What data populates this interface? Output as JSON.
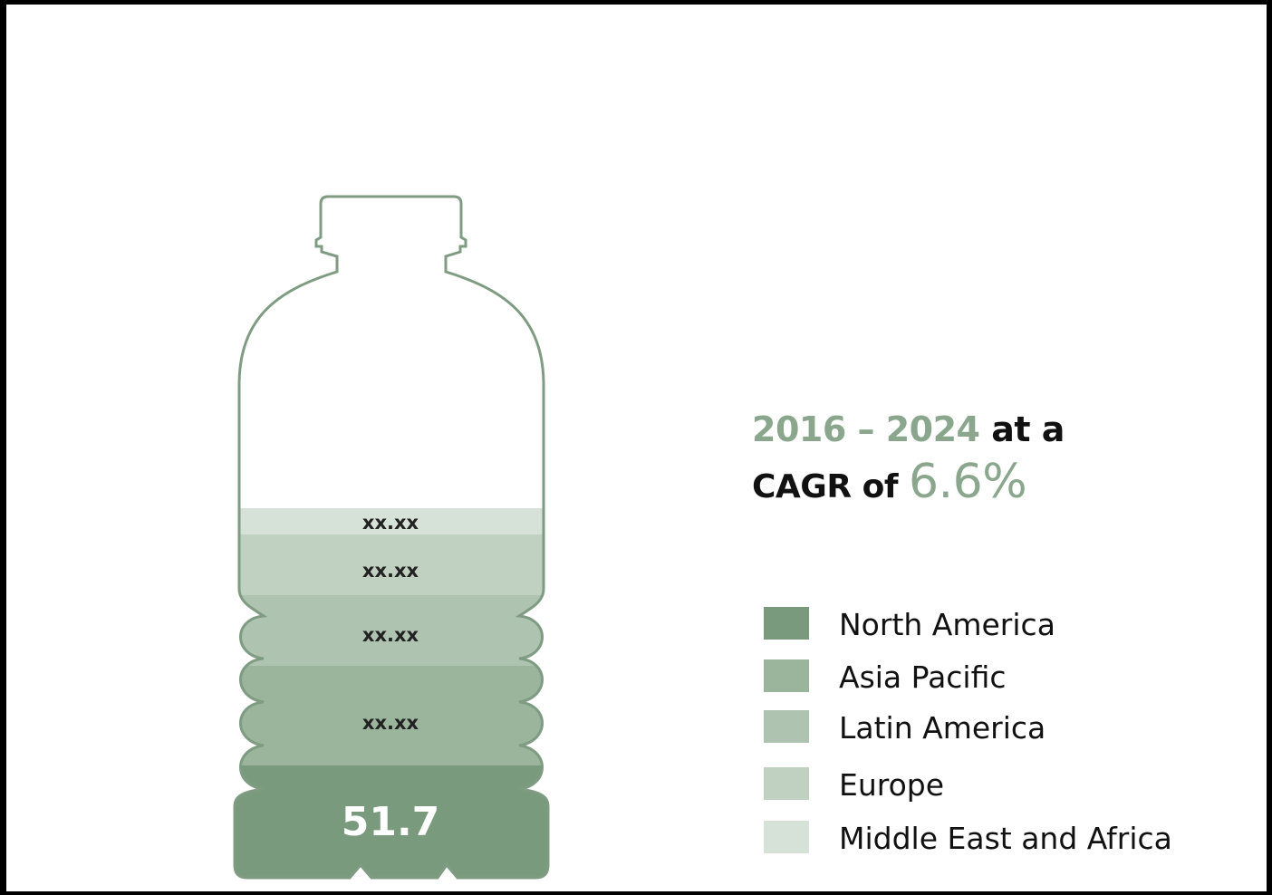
{
  "headline": {
    "years": "2016 – 2024",
    "at_a": "at a",
    "cagr_prefix": "CAGR of",
    "cagr_value": "6.6%"
  },
  "chart_data": {
    "type": "bar",
    "categories": [
      "North America",
      "Asia Pacific",
      "Latin America",
      "Europe",
      "Middle East and Africa"
    ],
    "stacked": true,
    "series": [
      {
        "name": "North America",
        "label": "51.7",
        "color": "#7a9a7e"
      },
      {
        "name": "Asia Pacific",
        "label": "xx.xx",
        "color": "#9ab59c"
      },
      {
        "name": "Latin America",
        "label": "xx.xx",
        "color": "#aec4b0"
      },
      {
        "name": "Europe",
        "label": "xx.xx",
        "color": "#c0d1c1"
      },
      {
        "name": "Middle East and Africa",
        "label": "xx.xx",
        "color": "#d6e1d7"
      }
    ],
    "legend_position": "right"
  },
  "legend": [
    {
      "label": "North America",
      "color": "#7a9a7e"
    },
    {
      "label": "Asia Pacific",
      "color": "#9ab59c"
    },
    {
      "label": "Latin America",
      "color": "#aec4b0"
    },
    {
      "label": "Europe",
      "color": "#c0d1c1"
    },
    {
      "label": "Middle East and Africa",
      "color": "#d6e1d7"
    }
  ],
  "colors": {
    "outline": "#7f9c83",
    "accent_text": "#8aa78e"
  }
}
